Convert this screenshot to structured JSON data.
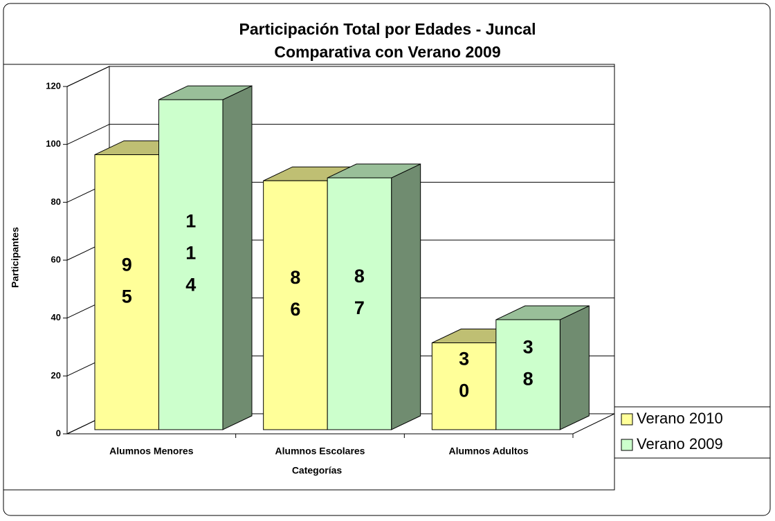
{
  "chart_data": {
    "type": "bar3d",
    "title": "Participación Total por Edades - Juncal",
    "subtitle": "Comparativa con Verano 2009",
    "x_label": "Categorías",
    "y_label": "Participantes",
    "categories": [
      "Alumnos Menores",
      "Alumnos Escolares",
      "Alumnos Adultos"
    ],
    "series": [
      {
        "name": "Verano 2010",
        "color": "#ffff99",
        "values": [
          95,
          86,
          30
        ]
      },
      {
        "name": "Verano 2009",
        "color": "#ccffcc",
        "values": [
          114,
          87,
          38
        ]
      }
    ],
    "ylim": [
      0,
      120
    ],
    "yticks": [
      0,
      20,
      40,
      60,
      80,
      100,
      120
    ],
    "grid": true,
    "legend": "right"
  }
}
